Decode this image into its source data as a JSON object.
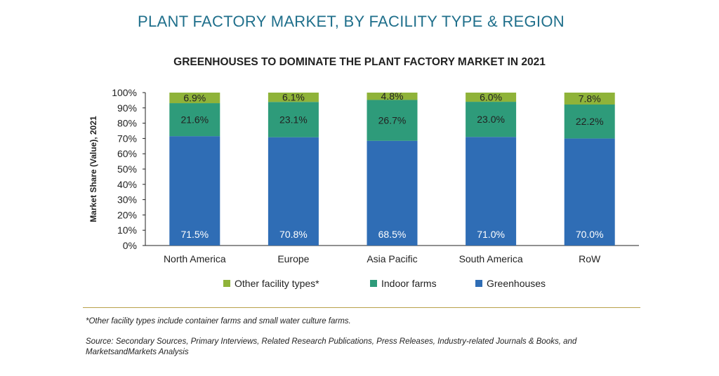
{
  "title": "PLANT FACTORY MARKET, BY FACILITY TYPE & REGION",
  "colors": {
    "title": "#1f6f8b",
    "greenhouses": "#2f6db5",
    "indoor_farms": "#2e9b7a",
    "other": "#8fb339",
    "divider": "#b8a14a"
  },
  "footnote": "*Other facility types include container farms and small water culture farms.",
  "source": "Source: Secondary Sources, Primary Interviews, Related Research Publications, Press Releases, Industry-related Journals & Books, and MarketsandMarkets Analysis",
  "chart_data": {
    "type": "bar",
    "stacked": true,
    "title": "GREENHOUSES TO DOMINATE THE PLANT FACTORY MARKET IN 2021",
    "ylabel": "Market Share (Value), 2021",
    "xlabel": "",
    "ylim": [
      0,
      100
    ],
    "yticks": [
      "0%",
      "10%",
      "20%",
      "30%",
      "40%",
      "50%",
      "60%",
      "70%",
      "80%",
      "90%",
      "100%"
    ],
    "categories": [
      "North America",
      "Europe",
      "Asia Pacific",
      "South America",
      "RoW"
    ],
    "series": [
      {
        "name": "Greenhouses",
        "values": [
          71.5,
          70.8,
          68.5,
          71.0,
          70.0
        ],
        "labels": [
          "71.5%",
          "70.8%",
          "68.5%",
          "71.0%",
          "70.0%"
        ],
        "color": "#2f6db5"
      },
      {
        "name": "Indoor farms",
        "values": [
          21.6,
          23.1,
          26.7,
          23.0,
          22.2
        ],
        "labels": [
          "21.6%",
          "23.1%",
          "26.7%",
          "23.0%",
          "22.2%"
        ],
        "color": "#2e9b7a"
      },
      {
        "name": "Other facility types*",
        "values": [
          6.9,
          6.1,
          4.8,
          6.0,
          7.8
        ],
        "labels": [
          "6.9%",
          "6.1%",
          "4.8%",
          "6.0%",
          "7.8%"
        ],
        "color": "#8fb339"
      }
    ],
    "legend": {
      "position": "bottom",
      "order": [
        "Other facility types*",
        "Indoor farms",
        "Greenhouses"
      ]
    },
    "grid": false
  }
}
